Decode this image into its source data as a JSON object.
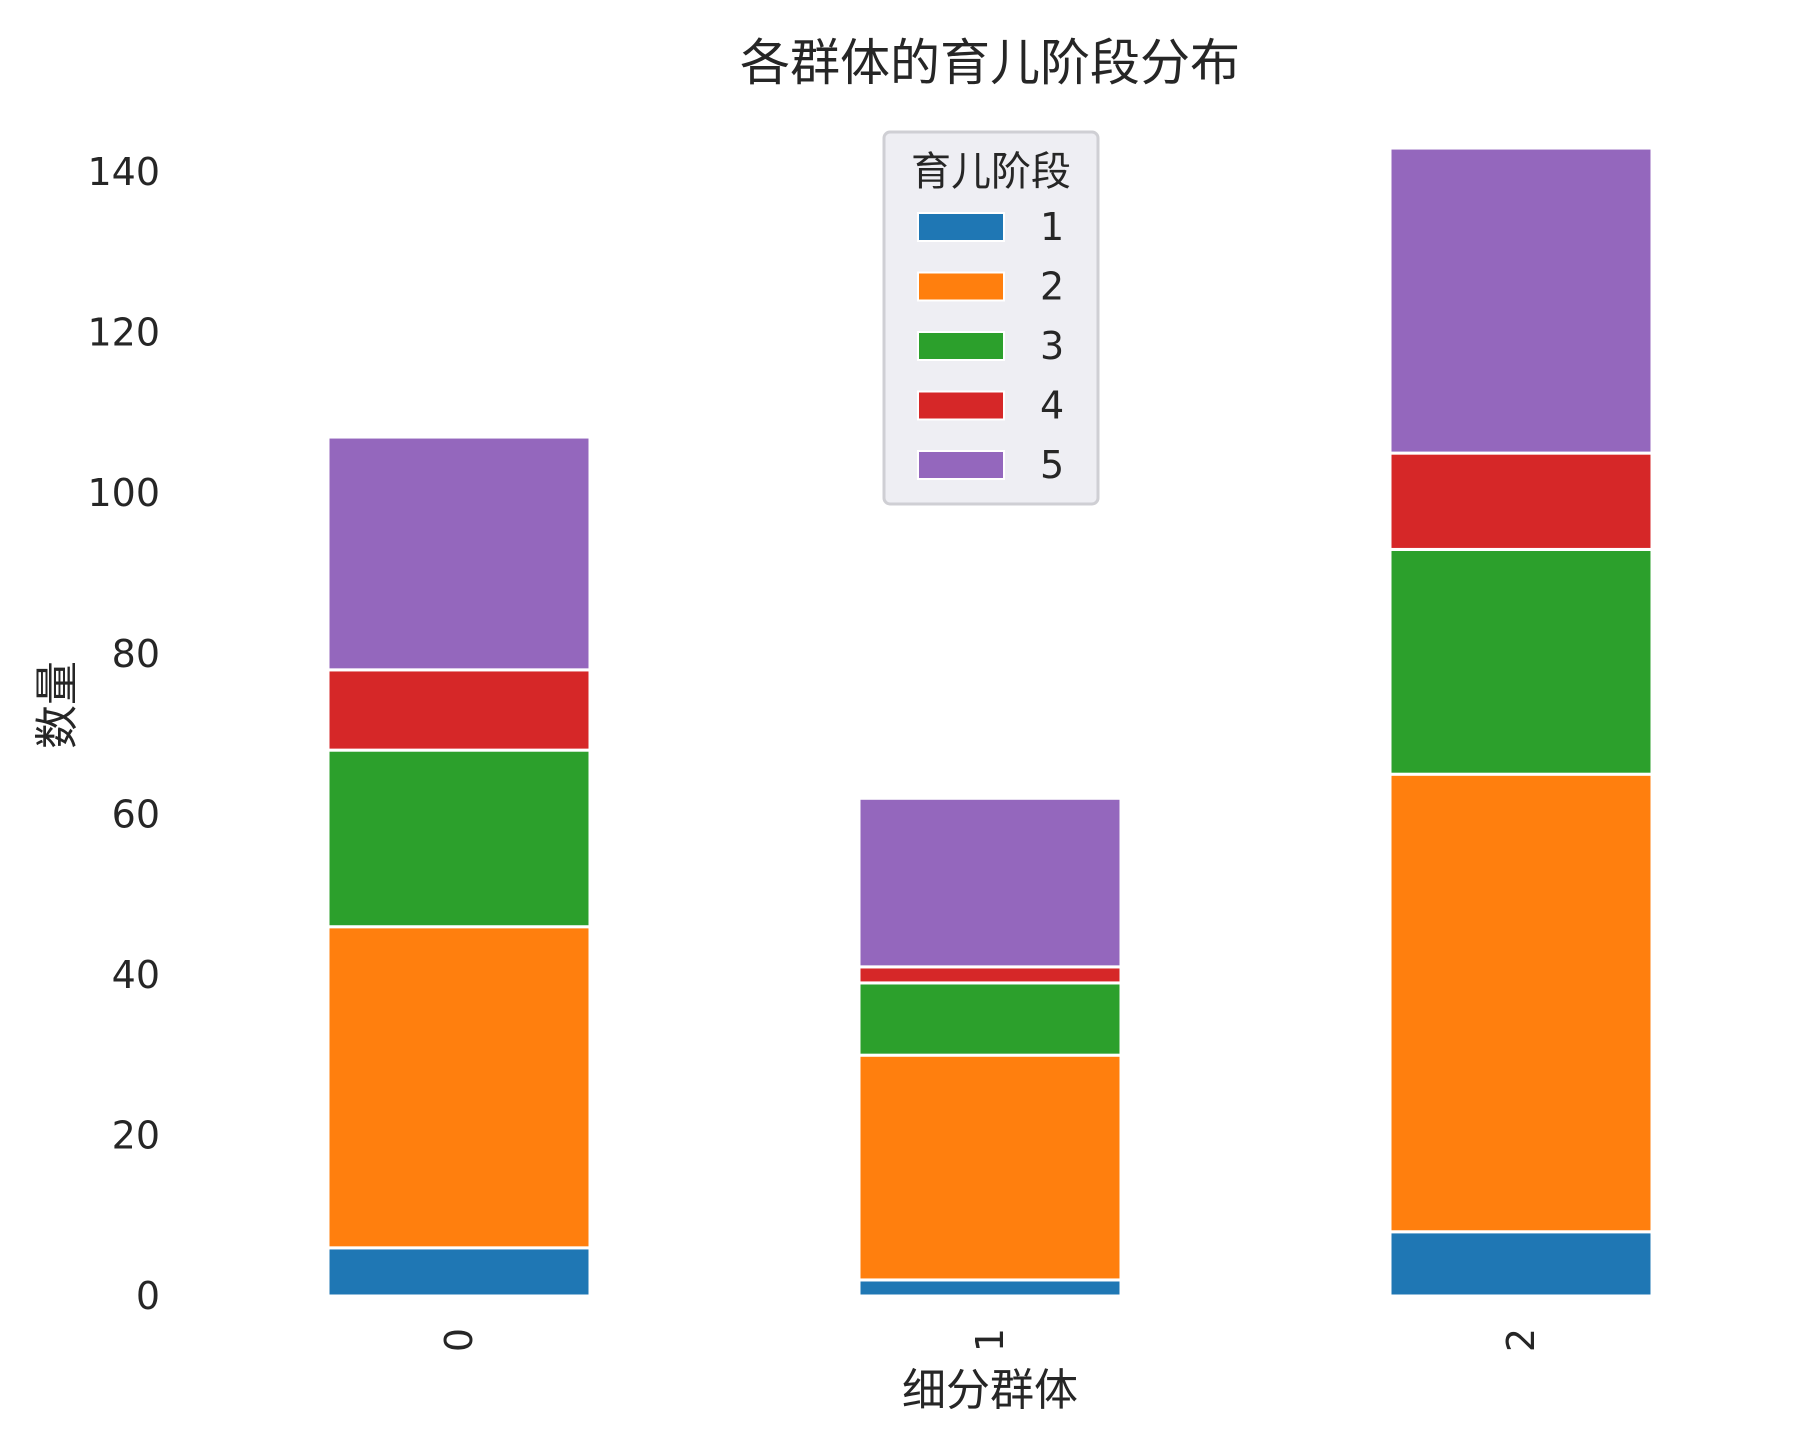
{
  "chart_data": {
    "type": "bar",
    "stacked": true,
    "title": "各群体的育儿阶段分布",
    "xlabel": "细分群体",
    "ylabel": "数量",
    "categories": [
      "0",
      "1",
      "2"
    ],
    "ylim": [
      0,
      145
    ],
    "yticks": [
      0,
      20,
      40,
      60,
      80,
      100,
      120,
      140
    ],
    "grid": false,
    "legend": {
      "title": "育儿阶段",
      "position": "top-center"
    },
    "series": [
      {
        "name": "1",
        "color": "#1f77b4",
        "values": [
          6,
          2,
          8
        ]
      },
      {
        "name": "2",
        "color": "#ff7f0e",
        "values": [
          40,
          28,
          57
        ]
      },
      {
        "name": "3",
        "color": "#2ca02c",
        "values": [
          22,
          9,
          28
        ]
      },
      {
        "name": "4",
        "color": "#d62728",
        "values": [
          10,
          2,
          12
        ]
      },
      {
        "name": "5",
        "color": "#9467bd",
        "values": [
          29,
          21,
          38
        ]
      }
    ]
  }
}
